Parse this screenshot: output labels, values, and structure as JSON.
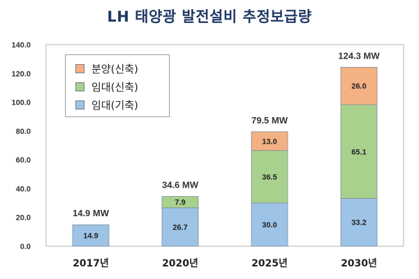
{
  "chart_data": {
    "type": "bar",
    "stacked": true,
    "title": "LH 태양광 발전설비 추정보급량",
    "categories": [
      "2017년",
      "2020년",
      "2025년",
      "2030년"
    ],
    "y_ticks": [
      "0.0",
      "20.0",
      "40.0",
      "60.0",
      "80.0",
      "100.0",
      "120.0",
      "140.0"
    ],
    "ylim": [
      0,
      140
    ],
    "grid": false,
    "legend_position": "top-left",
    "series": [
      {
        "name": "임대(기축)",
        "color": "#9dc3e6",
        "values": [
          14.9,
          26.7,
          30.0,
          33.2
        ],
        "labels": [
          "14.9",
          "26.7",
          "30.0",
          "33.2"
        ]
      },
      {
        "name": "임대(신축)",
        "color": "#a9d18e",
        "values": [
          0,
          7.9,
          36.5,
          65.1
        ],
        "labels": [
          "",
          "7.9",
          "36.5",
          "65.1"
        ]
      },
      {
        "name": "분양(신축)",
        "color": "#f4b183",
        "values": [
          0,
          0,
          13.0,
          26.0
        ],
        "labels": [
          "",
          "",
          "13.0",
          "26.0"
        ]
      }
    ],
    "totals": [
      "14.9 MW",
      "34.6 MW",
      "79.5 MW",
      "124.3 MW"
    ],
    "legend_order": [
      "분양(신축)",
      "임대(신축)",
      "임대(기축)"
    ]
  }
}
